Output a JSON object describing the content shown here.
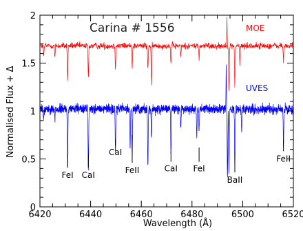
{
  "chart_data": {
    "type": "line",
    "title": "Carina # 1556",
    "xlabel": "Wavelength (Å)",
    "ylabel": "Normalised Flux + Δ",
    "xlim": [
      6420,
      6520
    ],
    "ylim": [
      0,
      2
    ],
    "xticks": [
      6420,
      6440,
      6460,
      6480,
      6500,
      6520
    ],
    "xtick_labels": [
      "6420",
      "6440",
      "6460",
      "6480",
      "6500",
      "6520"
    ],
    "yticks": [
      0,
      0.5,
      1,
      1.5,
      2
    ],
    "ytick_labels": [
      "0",
      "0.5",
      "1",
      "1.5",
      "2"
    ],
    "grid": false,
    "series": [
      {
        "name": "MOE",
        "color": "#ff0000",
        "continuum": 1.68,
        "noise": 0.035,
        "absorption_lines": [
          {
            "x": 6421.5,
            "depth": 0.12
          },
          {
            "x": 6425.9,
            "depth": 0.13
          },
          {
            "x": 6430.9,
            "depth": 0.38
          },
          {
            "x": 6439.1,
            "depth": 0.35
          },
          {
            "x": 6449.8,
            "depth": 0.22
          },
          {
            "x": 6456.4,
            "depth": 0.22
          },
          {
            "x": 6462.6,
            "depth": 0.25
          },
          {
            "x": 6464.0,
            "depth": 0.45
          },
          {
            "x": 6471.7,
            "depth": 0.2
          },
          {
            "x": 6475.6,
            "depth": 0.12
          },
          {
            "x": 6482.8,
            "depth": 0.14
          },
          {
            "x": 6494.6,
            "depth": 0.5
          },
          {
            "x": 6496.9,
            "depth": 0.42
          },
          {
            "x": 6498.9,
            "depth": 0.18
          },
          {
            "x": 6516.1,
            "depth": 0.16
          }
        ],
        "spikes": [
          {
            "x": 6493.8,
            "height": 0.32
          }
        ]
      },
      {
        "name": "UVES",
        "color": "#0000ff",
        "continuum": 1.02,
        "noise": 0.05,
        "absorption_lines": [
          {
            "x": 6421.4,
            "depth": 0.12
          },
          {
            "x": 6425.9,
            "depth": 0.1
          },
          {
            "x": 6430.9,
            "depth": 0.6
          },
          {
            "x": 6439.1,
            "depth": 0.62
          },
          {
            "x": 6449.8,
            "depth": 0.45
          },
          {
            "x": 6455.6,
            "depth": 0.4
          },
          {
            "x": 6456.4,
            "depth": 0.48
          },
          {
            "x": 6462.6,
            "depth": 0.6
          },
          {
            "x": 6464.0,
            "depth": 0.3
          },
          {
            "x": 6471.7,
            "depth": 0.48
          },
          {
            "x": 6475.6,
            "depth": 0.18
          },
          {
            "x": 6481.9,
            "depth": 0.3
          },
          {
            "x": 6482.8,
            "depth": 0.22
          },
          {
            "x": 6494.0,
            "depth": 0.7
          },
          {
            "x": 6494.6,
            "depth": 0.65
          },
          {
            "x": 6496.9,
            "depth": 0.62
          },
          {
            "x": 6499.6,
            "depth": 0.25
          },
          {
            "x": 6516.1,
            "depth": 0.38
          }
        ],
        "spikes": [
          {
            "x": 6493.5,
            "height": 0.45
          }
        ]
      }
    ],
    "line_identifications": [
      {
        "label": "FeI",
        "x": 6430.9,
        "y": 0.33,
        "mark_from": 0.41,
        "mark_to": 0.55
      },
      {
        "label": "CaI",
        "x": 6439.1,
        "y": 0.33,
        "mark_from": 0.41,
        "mark_to": 0.55
      },
      {
        "label": "CaI",
        "x": 6449.8,
        "y": 0.57,
        "mark_from": 0.64,
        "mark_to": 0.7
      },
      {
        "label": "FeII",
        "x": 6456.4,
        "y": 0.38,
        "mark_from": 0.46,
        "mark_to": 0.75
      },
      {
        "label": "CaI",
        "x": 6471.7,
        "y": 0.4,
        "mark_from": 0.47,
        "mark_to": 0.58
      },
      {
        "label": "FeI",
        "x": 6482.8,
        "y": 0.4,
        "mark_from": 0.47,
        "mark_to": 0.62
      },
      {
        "label": "BaII",
        "x": 6496.9,
        "y": 0.28,
        "mark_from": 0.36,
        "mark_to": 0.58
      },
      {
        "label": "FeII",
        "x": 6516.1,
        "y": 0.5,
        "mark_from": 0.58,
        "mark_to": 0.7
      }
    ]
  }
}
